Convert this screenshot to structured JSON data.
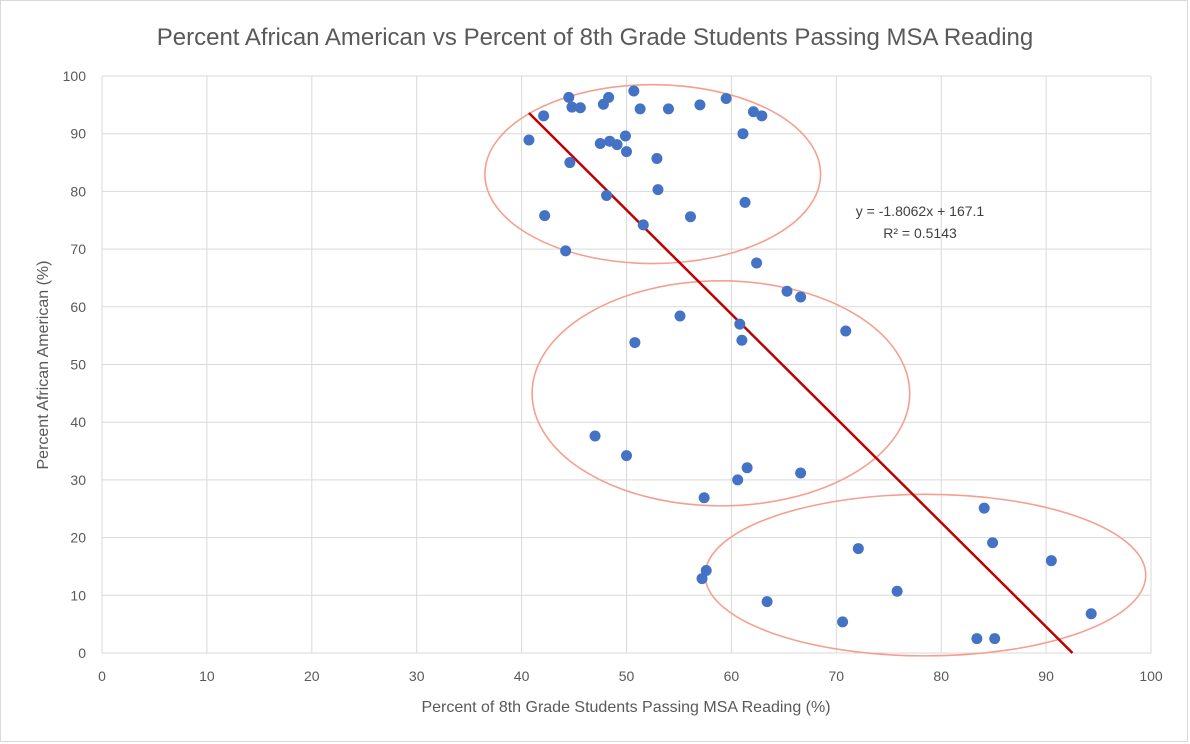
{
  "chart_data": {
    "type": "scatter",
    "title": "Percent African American vs Percent of 8th Grade Students Passing MSA Reading",
    "xlabel": "Percent of 8th Grade Students Passing MSA Reading (%)",
    "ylabel": "Percent African American (%)",
    "xlim": [
      0,
      100
    ],
    "ylim": [
      0,
      100
    ],
    "xticks": [
      0,
      10,
      20,
      30,
      40,
      50,
      60,
      70,
      80,
      90,
      100
    ],
    "yticks": [
      0,
      10,
      20,
      30,
      40,
      50,
      60,
      70,
      80,
      90,
      100
    ],
    "grid": true,
    "legend": "none",
    "marker_color": "#4472c4",
    "points": [
      {
        "x": 40.7,
        "y": 88.9
      },
      {
        "x": 42.1,
        "y": 93.1
      },
      {
        "x": 42.2,
        "y": 75.8
      },
      {
        "x": 44.2,
        "y": 69.7
      },
      {
        "x": 44.5,
        "y": 96.3
      },
      {
        "x": 44.6,
        "y": 85.0
      },
      {
        "x": 44.8,
        "y": 94.6
      },
      {
        "x": 45.6,
        "y": 94.5
      },
      {
        "x": 47.5,
        "y": 88.3
      },
      {
        "x": 47.8,
        "y": 95.1
      },
      {
        "x": 48.1,
        "y": 79.3
      },
      {
        "x": 48.3,
        "y": 96.3
      },
      {
        "x": 48.4,
        "y": 88.7
      },
      {
        "x": 49.1,
        "y": 88.1
      },
      {
        "x": 49.9,
        "y": 89.6
      },
      {
        "x": 50.0,
        "y": 86.9
      },
      {
        "x": 50.7,
        "y": 97.4
      },
      {
        "x": 51.3,
        "y": 94.3
      },
      {
        "x": 51.6,
        "y": 74.2
      },
      {
        "x": 52.9,
        "y": 85.7
      },
      {
        "x": 53.0,
        "y": 80.3
      },
      {
        "x": 54.0,
        "y": 94.3
      },
      {
        "x": 56.1,
        "y": 75.6
      },
      {
        "x": 57.0,
        "y": 95.0
      },
      {
        "x": 59.5,
        "y": 96.1
      },
      {
        "x": 61.1,
        "y": 90.0
      },
      {
        "x": 61.3,
        "y": 78.1
      },
      {
        "x": 62.1,
        "y": 93.8
      },
      {
        "x": 62.9,
        "y": 93.1
      },
      {
        "x": 62.4,
        "y": 67.6
      },
      {
        "x": 65.3,
        "y": 62.7
      },
      {
        "x": 66.6,
        "y": 61.7
      },
      {
        "x": 55.1,
        "y": 58.4
      },
      {
        "x": 60.8,
        "y": 57.0
      },
      {
        "x": 70.9,
        "y": 55.8
      },
      {
        "x": 61.0,
        "y": 54.2
      },
      {
        "x": 50.8,
        "y": 53.8
      },
      {
        "x": 47.0,
        "y": 37.6
      },
      {
        "x": 50.0,
        "y": 34.2
      },
      {
        "x": 61.5,
        "y": 32.1
      },
      {
        "x": 66.6,
        "y": 31.2
      },
      {
        "x": 60.6,
        "y": 30.0
      },
      {
        "x": 57.4,
        "y": 26.9
      },
      {
        "x": 84.1,
        "y": 25.1
      },
      {
        "x": 84.9,
        "y": 19.1
      },
      {
        "x": 72.1,
        "y": 18.1
      },
      {
        "x": 90.5,
        "y": 16.0
      },
      {
        "x": 57.6,
        "y": 14.3
      },
      {
        "x": 57.2,
        "y": 12.9
      },
      {
        "x": 75.8,
        "y": 10.7
      },
      {
        "x": 63.4,
        "y": 8.9
      },
      {
        "x": 94.3,
        "y": 6.8
      },
      {
        "x": 70.6,
        "y": 5.4
      },
      {
        "x": 83.4,
        "y": 2.5
      },
      {
        "x": 85.1,
        "y": 2.5
      }
    ],
    "trendline": {
      "slope": -1.8062,
      "intercept": 167.1,
      "x_start": 40.7,
      "color": "#c00000",
      "equation": "y = -1.8062x + 167.1",
      "r_squared": "R² = 0.5143"
    },
    "cluster_ellipses": {
      "color": "#f4a090",
      "items": [
        {
          "cx": 52.5,
          "cy": 83.0,
          "rx": 16.0,
          "ry": 15.5
        },
        {
          "cx": 59.0,
          "cy": 45.0,
          "rx": 18.0,
          "ry": 19.5
        },
        {
          "cx": 78.5,
          "cy": 13.5,
          "rx": 21.0,
          "ry": 14.0
        }
      ]
    }
  }
}
